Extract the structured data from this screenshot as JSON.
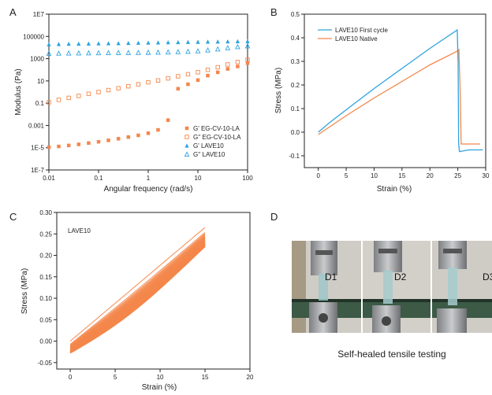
{
  "panels": {
    "A": "A",
    "B": "B",
    "C": "C",
    "D": "D"
  },
  "colors": {
    "orange": "#f4874b",
    "blue": "#2ea3e0",
    "blue_light": "#3aa8e4"
  },
  "chart_data": [
    {
      "id": "A",
      "type": "scatter",
      "xlabel": "Angular frequency (rad/s)",
      "ylabel": "Modulus (Pa)",
      "x_scale": "log",
      "y_scale": "log",
      "xlim": [
        0.01,
        100
      ],
      "ylim": [
        1e-07,
        10000000.0
      ],
      "x_ticks": [
        0.01,
        0.1,
        1,
        10,
        100
      ],
      "x_tick_labels": [
        "0.01",
        "0.1",
        "1",
        "10",
        "100"
      ],
      "y_ticks": [
        1e-07,
        1e-05,
        0.001,
        0.1,
        10,
        1000,
        100000,
        10000000.0
      ],
      "y_tick_labels": [
        "1E-7",
        "1E-5",
        "0.001",
        "0.1",
        "10",
        "1000",
        "100000",
        "1E7"
      ],
      "legend_position": "bottom-right",
      "series": [
        {
          "name": "G' EG-CV-10-LA",
          "marker": "filled-square",
          "color": "#f4874b",
          "x": [
            0.01,
            0.0158,
            0.0251,
            0.0398,
            0.0631,
            0.1,
            0.158,
            0.251,
            0.398,
            0.631,
            1,
            1.58,
            2.51,
            3.98,
            6.31,
            10,
            15.8,
            25.1,
            39.8,
            63.1,
            100
          ],
          "y": [
            1.1e-05,
            1.3e-05,
            1.6e-05,
            2e-05,
            2.6e-05,
            3.4e-05,
            4.6e-05,
            6.4e-05,
            9e-05,
            0.00013,
            0.0002,
            0.0004,
            0.003,
            2,
            5,
            12,
            30,
            60,
            120,
            200,
            400
          ]
        },
        {
          "name": "G'' EG-CV-10-LA",
          "marker": "open-square",
          "color": "#f4874b",
          "x": [
            0.01,
            0.0158,
            0.0251,
            0.0398,
            0.0631,
            0.1,
            0.158,
            0.251,
            0.398,
            0.631,
            1,
            1.58,
            2.51,
            3.98,
            6.31,
            10,
            15.8,
            25.1,
            39.8,
            63.1,
            100
          ],
          "y": [
            0.12,
            0.2,
            0.3,
            0.45,
            0.7,
            1.0,
            1.5,
            2.2,
            3.3,
            5,
            7.5,
            11,
            17,
            26,
            40,
            60,
            100,
            170,
            300,
            500,
            800
          ]
        },
        {
          "name": "G' LAVE10",
          "marker": "filled-triangle",
          "color": "#2ea3e0",
          "x": [
            0.01,
            0.0158,
            0.0251,
            0.0398,
            0.0631,
            0.1,
            0.158,
            0.251,
            0.398,
            0.631,
            1,
            1.58,
            2.51,
            3.98,
            6.31,
            10,
            15.8,
            25.1,
            39.8,
            63.1,
            100
          ],
          "y": [
            20000,
            21000,
            22000,
            22500,
            23000,
            24000,
            24500,
            25000,
            26000,
            27000,
            28000,
            29000,
            30000,
            31000,
            32000,
            33000,
            34000,
            35000,
            36000,
            37000,
            38000
          ]
        },
        {
          "name": "G'' LAVE10",
          "marker": "open-triangle",
          "color": "#2ea3e0",
          "x": [
            0.01,
            0.0158,
            0.0251,
            0.0398,
            0.0631,
            0.1,
            0.158,
            0.251,
            0.398,
            0.631,
            1,
            1.58,
            2.51,
            3.98,
            6.31,
            10,
            15.8,
            25.1,
            39.8,
            63.1,
            100
          ],
          "y": [
            3000,
            3100,
            3200,
            3250,
            3300,
            3400,
            3450,
            3500,
            3550,
            3600,
            3700,
            3800,
            4000,
            4200,
            4500,
            5000,
            6000,
            7500,
            9500,
            12000,
            14000
          ]
        }
      ]
    },
    {
      "id": "B",
      "type": "line",
      "xlabel": "Strain (%)",
      "ylabel": "Stress (MPa)",
      "xlim": [
        -2.5,
        30
      ],
      "ylim": [
        -0.15,
        0.5
      ],
      "x_ticks": [
        0,
        5,
        10,
        15,
        20,
        25,
        30
      ],
      "y_ticks": [
        -0.1,
        0.0,
        0.1,
        0.2,
        0.3,
        0.4,
        0.5
      ],
      "y_tick_labels": [
        "-0.1",
        "0.0",
        "0.1",
        "0.2",
        "0.3",
        "0.4",
        "0.5"
      ],
      "legend_position": "top-left",
      "series": [
        {
          "name": "LAVE10 First cycle",
          "color": "#2ea3e0",
          "x": [
            0,
            2,
            5,
            10,
            15,
            20,
            24.9,
            25.05,
            25.15,
            25.3,
            27,
            29.5
          ],
          "y": [
            0.0,
            0.04,
            0.095,
            0.185,
            0.27,
            0.355,
            0.433,
            0.3,
            -0.05,
            -0.082,
            -0.075,
            -0.075
          ]
        },
        {
          "name": "LAVE10 Native",
          "color": "#f4874b",
          "x": [
            0,
            2,
            5,
            10,
            15,
            20,
            24.8,
            25.2,
            25.4,
            25.6,
            27,
            29
          ],
          "y": [
            -0.01,
            0.022,
            0.07,
            0.145,
            0.215,
            0.285,
            0.342,
            0.35,
            0.2,
            -0.05,
            -0.05,
            -0.05
          ]
        }
      ]
    },
    {
      "id": "C",
      "type": "line",
      "annotation": "LAVE10",
      "xlabel": "Strain (%)",
      "ylabel": "Stress (MPa)",
      "xlim": [
        -1.5,
        20
      ],
      "ylim": [
        -0.065,
        0.3
      ],
      "x_ticks": [
        0,
        5,
        10,
        15,
        20
      ],
      "y_ticks": [
        -0.05,
        0.0,
        0.05,
        0.1,
        0.15,
        0.2,
        0.25,
        0.3
      ],
      "y_tick_labels": [
        "-0.05",
        "0.00",
        "0.05",
        "0.10",
        "0.15",
        "0.20",
        "0.25",
        "0.30"
      ],
      "color": "#f4874b",
      "cycles": {
        "count": 50,
        "first": {
          "start_y": 0.0,
          "end_y": 0.265
        },
        "last": {
          "start_y": -0.028,
          "end_y": 0.22
        }
      }
    }
  ],
  "photo": {
    "labels": [
      "D1",
      "D2",
      "D3"
    ],
    "caption": "Self-healed tensile testing"
  }
}
